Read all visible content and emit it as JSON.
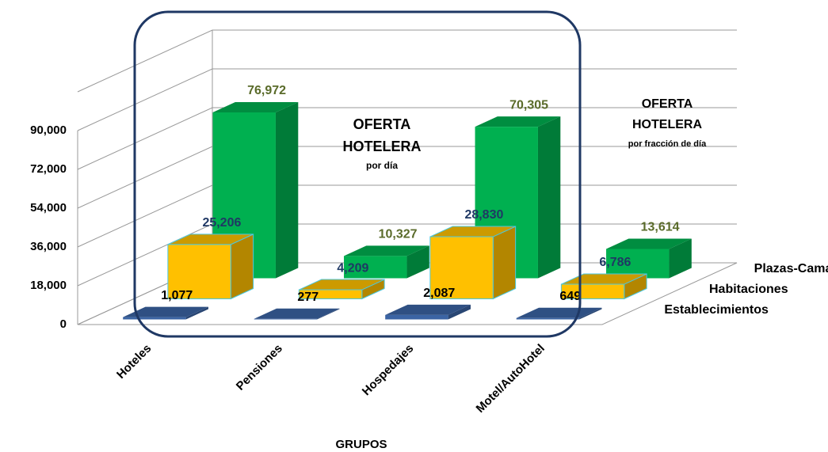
{
  "chart_data": {
    "type": "bar3d",
    "categories": [
      "Hoteles",
      "Pensiones",
      "Hospedajes",
      "Motel/AutoHotel"
    ],
    "series": [
      {
        "name": "Establecimientos",
        "color": "#3b64a4",
        "label_color": "#000000",
        "values": [
          1077,
          277,
          2087,
          649
        ],
        "value_labels": [
          "1,077",
          "277",
          "2,087",
          "649"
        ]
      },
      {
        "name": "Habitaciones",
        "color": "#ffc000",
        "label_color": "#1f3864",
        "values": [
          25206,
          4209,
          28830,
          6786
        ],
        "value_labels": [
          "25,206",
          "4,209",
          "28,830",
          "6,786"
        ]
      },
      {
        "name": "Plazas-Cama",
        "color": "#00b050",
        "label_color": "#5a6b2a",
        "values": [
          76972,
          10327,
          70305,
          13614
        ],
        "value_labels": [
          "76,972",
          "10,327",
          "70,305",
          "13,614"
        ]
      }
    ],
    "ylim": [
      0,
      108000
    ],
    "yticks": [
      0,
      {
        "value": 18000,
        "label": "18,000"
      },
      {
        "value": 36000,
        "label": "36,000"
      },
      {
        "value": 54000,
        "label": "54,000"
      },
      {
        "value": 72000,
        "label": "72,000"
      },
      {
        "value": 90000,
        "label": "90,000"
      }
    ],
    "grid": true,
    "xlabel": "GRUPOS",
    "annotations": [
      {
        "title": "OFERTA",
        "subtitle": "HOTELERA",
        "note": "por día"
      },
      {
        "title": "OFERTA",
        "subtitle": "HOTELERA",
        "note": "por fracción de día"
      }
    ]
  }
}
